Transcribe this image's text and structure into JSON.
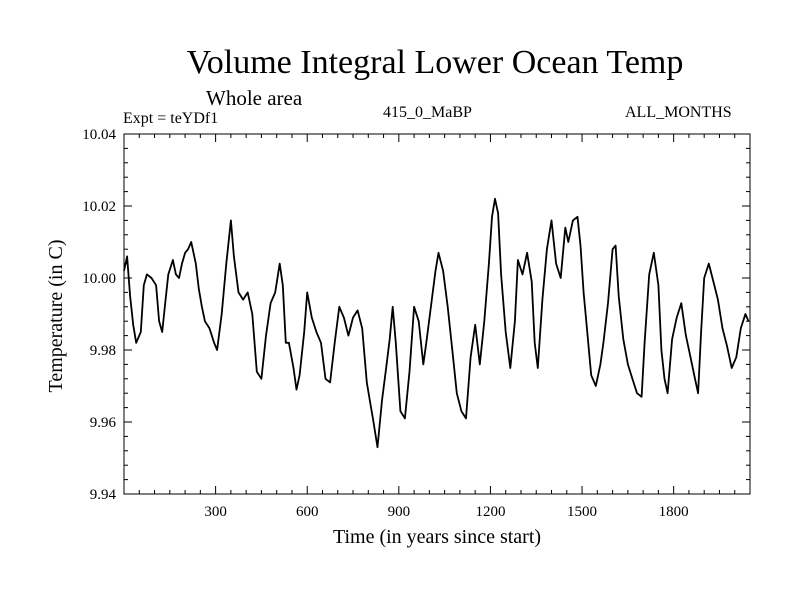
{
  "header": {
    "title": "Volume Integral Lower Ocean Temp",
    "subtitle": "Whole area",
    "expt_label": "Expt = teYDf1",
    "run_label": "415_0_MaBP",
    "months_label": "ALL_MONTHS"
  },
  "chart_data": {
    "type": "line",
    "title": "Volume Integral Lower Ocean Temp",
    "subtitle": "Whole area",
    "xlabel": "Time (in years since start)",
    "ylabel": "Temperature (in C)",
    "xlim": [
      0,
      2050
    ],
    "ylim": [
      9.94,
      10.04
    ],
    "x_ticks": [
      300,
      600,
      900,
      1200,
      1500,
      1800
    ],
    "x_tick_labels": [
      "300",
      "600",
      "900",
      "1200",
      "1500",
      "1800"
    ],
    "y_ticks": [
      9.94,
      9.96,
      9.98,
      10.0,
      10.02,
      10.04
    ],
    "y_tick_labels": [
      "9.94",
      "9.96",
      "9.98",
      "10.00",
      "10.02",
      "10.04"
    ],
    "grid": false,
    "series": [
      {
        "name": "teYDf1",
        "color": "#000000",
        "x": [
          0,
          10,
          20,
          30,
          40,
          55,
          65,
          75,
          90,
          105,
          115,
          125,
          135,
          145,
          160,
          170,
          180,
          190,
          200,
          210,
          220,
          235,
          245,
          255,
          265,
          280,
          295,
          305,
          320,
          335,
          350,
          360,
          375,
          390,
          405,
          420,
          435,
          450,
          465,
          480,
          495,
          510,
          520,
          530,
          540,
          555,
          565,
          575,
          590,
          600,
          615,
          630,
          645,
          660,
          675,
          690,
          705,
          720,
          735,
          750,
          765,
          780,
          795,
          805,
          815,
          830,
          845,
          860,
          870,
          880,
          890,
          905,
          920,
          935,
          950,
          965,
          980,
          990,
          1005,
          1020,
          1030,
          1045,
          1060,
          1075,
          1090,
          1105,
          1120,
          1135,
          1150,
          1165,
          1180,
          1195,
          1205,
          1215,
          1225,
          1235,
          1250,
          1265,
          1280,
          1290,
          1305,
          1320,
          1335,
          1345,
          1355,
          1370,
          1385,
          1400,
          1415,
          1430,
          1445,
          1455,
          1470,
          1485,
          1495,
          1505,
          1515,
          1530,
          1545,
          1560,
          1570,
          1585,
          1600,
          1610,
          1620,
          1635,
          1650,
          1665,
          1680,
          1695,
          1705,
          1720,
          1735,
          1750,
          1760,
          1770,
          1780,
          1795,
          1810,
          1825,
          1840,
          1855,
          1870,
          1880,
          1890,
          1900,
          1915,
          1930,
          1945,
          1960,
          1975,
          1990,
          2005,
          2020,
          2035,
          2045
        ],
        "values": [
          10.002,
          10.006,
          9.995,
          9.987,
          9.982,
          9.985,
          9.998,
          10.001,
          10.0,
          9.998,
          9.988,
          9.985,
          9.993,
          10.001,
          10.005,
          10.001,
          10.0,
          10.004,
          10.007,
          10.008,
          10.01,
          10.004,
          9.997,
          9.992,
          9.988,
          9.986,
          9.982,
          9.98,
          9.99,
          10.004,
          10.016,
          10.006,
          9.996,
          9.994,
          9.996,
          9.99,
          9.974,
          9.972,
          9.984,
          9.993,
          9.996,
          10.004,
          9.998,
          9.982,
          9.982,
          9.975,
          9.969,
          9.973,
          9.985,
          9.996,
          9.989,
          9.985,
          9.982,
          9.972,
          9.971,
          9.982,
          9.992,
          9.989,
          9.984,
          9.989,
          9.991,
          9.986,
          9.971,
          9.966,
          9.961,
          9.953,
          9.966,
          9.976,
          9.983,
          9.992,
          9.982,
          9.963,
          9.961,
          9.974,
          9.992,
          9.988,
          9.976,
          9.982,
          9.992,
          10.002,
          10.007,
          10.002,
          9.992,
          9.98,
          9.968,
          9.963,
          9.961,
          9.978,
          9.987,
          9.976,
          9.988,
          10.004,
          10.017,
          10.022,
          10.018,
          10.001,
          9.985,
          9.975,
          9.988,
          10.005,
          10.001,
          10.007,
          9.999,
          9.982,
          9.975,
          9.994,
          10.008,
          10.016,
          10.004,
          10.0,
          10.014,
          10.01,
          10.016,
          10.017,
          10.009,
          9.996,
          9.987,
          9.973,
          9.97,
          9.976,
          9.982,
          9.993,
          10.008,
          10.009,
          9.995,
          9.983,
          9.976,
          9.972,
          9.968,
          9.967,
          9.982,
          10.001,
          10.007,
          9.998,
          9.98,
          9.972,
          9.968,
          9.983,
          9.989,
          9.993,
          9.984,
          9.978,
          9.972,
          9.968,
          9.985,
          10.0,
          10.004,
          9.999,
          9.994,
          9.986,
          9.981,
          9.975,
          9.978,
          9.986,
          9.99,
          9.988
        ]
      }
    ]
  }
}
